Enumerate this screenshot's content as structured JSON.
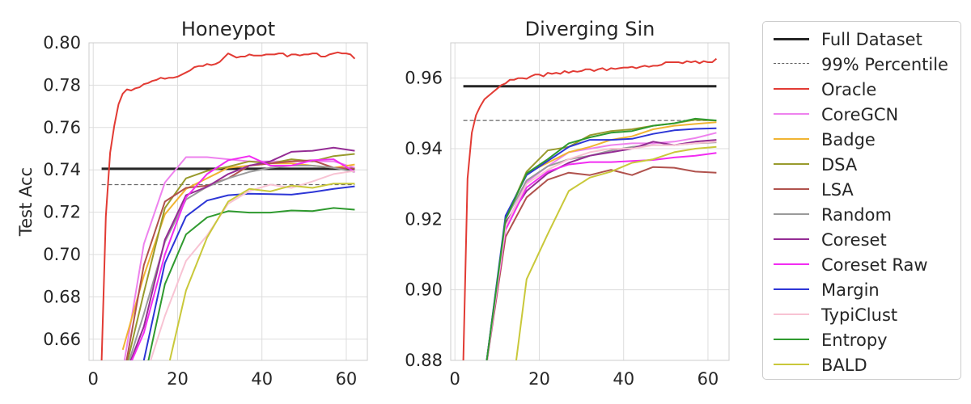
{
  "y_axis_label": "Test Acc",
  "series_styles": [
    {
      "name": "Full Dataset",
      "color": "#262626",
      "width": 3,
      "dash": ""
    },
    {
      "name": "99% Percentile",
      "color": "#666666",
      "width": 1.3,
      "dash": "5,3"
    },
    {
      "name": "Oracle",
      "color": "#e23b34",
      "width": 2,
      "dash": ""
    },
    {
      "name": "CoreGCN",
      "color": "#ee82ee",
      "width": 2,
      "dash": ""
    },
    {
      "name": "Badge",
      "color": "#f0b433",
      "width": 2,
      "dash": ""
    },
    {
      "name": "DSA",
      "color": "#989a2c",
      "width": 2,
      "dash": ""
    },
    {
      "name": "LSA",
      "color": "#b0524d",
      "width": 2,
      "dash": ""
    },
    {
      "name": "Random",
      "color": "#9a9a9a",
      "width": 2,
      "dash": ""
    },
    {
      "name": "Coreset",
      "color": "#942c94",
      "width": 2,
      "dash": ""
    },
    {
      "name": "Coreset Raw",
      "color": "#f22cf2",
      "width": 2,
      "dash": ""
    },
    {
      "name": "Margin",
      "color": "#2d36d6",
      "width": 2,
      "dash": ""
    },
    {
      "name": "TypiClust",
      "color": "#f8c3d3",
      "width": 2,
      "dash": ""
    },
    {
      "name": "Entropy",
      "color": "#2f9a2f",
      "width": 2,
      "dash": ""
    },
    {
      "name": "BALD",
      "color": "#c9c83a",
      "width": 2,
      "dash": ""
    }
  ],
  "chart_data": [
    {
      "type": "line",
      "title": "Honeypot",
      "xlabel": "",
      "ylabel": "Test Acc",
      "xlim": [
        -1,
        65
      ],
      "ylim": [
        0.65,
        0.8
      ],
      "xticks": [
        0,
        20,
        40,
        60
      ],
      "yticks": [
        0.66,
        0.68,
        0.7,
        0.72,
        0.74,
        0.76,
        0.78,
        0.8
      ],
      "ytick_labels": [
        "0.66",
        "0.68",
        "0.70",
        "0.72",
        "0.74",
        "0.76",
        "0.78",
        "0.80"
      ],
      "grid": true,
      "series": [
        {
          "name": "Full Dataset",
          "x": [
            2,
            62
          ],
          "values": [
            0.7405,
            0.7405
          ]
        },
        {
          "name": "99% Percentile",
          "x": [
            2,
            62
          ],
          "values": [
            0.733,
            0.733
          ]
        },
        {
          "name": "Oracle",
          "x": [
            2,
            3,
            4,
            5,
            6,
            7,
            8,
            9,
            10,
            11,
            12,
            13,
            14,
            15,
            16,
            17,
            18,
            19,
            20,
            21,
            22,
            23,
            24,
            25,
            26,
            27,
            28,
            29,
            30,
            31,
            32,
            33,
            34,
            35,
            36,
            37,
            38,
            39,
            40,
            41,
            42,
            43,
            44,
            45,
            46,
            47,
            48,
            49,
            50,
            51,
            52,
            53,
            54,
            55,
            56,
            57,
            58,
            59,
            60,
            61,
            62
          ],
          "values": [
            0.65,
            0.718,
            0.748,
            0.761,
            0.771,
            0.776,
            0.778,
            0.7775,
            0.7785,
            0.779,
            0.7805,
            0.781,
            0.782,
            0.7825,
            0.7835,
            0.783,
            0.7835,
            0.7835,
            0.784,
            0.785,
            0.786,
            0.787,
            0.7885,
            0.789,
            0.789,
            0.79,
            0.7895,
            0.79,
            0.791,
            0.793,
            0.795,
            0.794,
            0.793,
            0.7935,
            0.7935,
            0.7945,
            0.794,
            0.794,
            0.794,
            0.7945,
            0.7945,
            0.7945,
            0.795,
            0.795,
            0.7935,
            0.7945,
            0.7945,
            0.794,
            0.7945,
            0.7945,
            0.795,
            0.795,
            0.7935,
            0.7935,
            0.7945,
            0.795,
            0.7955,
            0.795,
            0.795,
            0.7945,
            0.7925
          ]
        },
        {
          "name": "CoreGCN",
          "x": [
            7,
            12,
            17,
            22,
            27,
            32,
            37,
            42,
            47,
            52,
            57,
            62
          ],
          "values": [
            0.645,
            0.705,
            0.734,
            0.746,
            0.746,
            0.745,
            0.744,
            0.744,
            0.744,
            0.744,
            0.744,
            0.741
          ]
        },
        {
          "name": "Badge",
          "x": [
            7,
            12,
            17,
            22,
            27,
            32,
            37,
            42,
            47,
            52,
            57,
            62
          ],
          "values": [
            0.655,
            0.69,
            0.719,
            0.731,
            0.736,
            0.741,
            0.742,
            0.743,
            0.743,
            0.742,
            0.741,
            0.7425
          ]
        },
        {
          "name": "DSA",
          "x": [
            7,
            12,
            17,
            22,
            27,
            32,
            37,
            42,
            47,
            52,
            57,
            62
          ],
          "values": [
            0.64,
            0.682,
            0.722,
            0.736,
            0.7395,
            0.7415,
            0.744,
            0.743,
            0.745,
            0.744,
            0.7465,
            0.7475
          ]
        },
        {
          "name": "LSA",
          "x": [
            7,
            12,
            17,
            22,
            27,
            32,
            37,
            42,
            47,
            52,
            57,
            62
          ],
          "values": [
            0.64,
            0.695,
            0.725,
            0.7315,
            0.7325,
            0.736,
            0.742,
            0.743,
            0.744,
            0.7445,
            0.741,
            0.7405
          ]
        },
        {
          "name": "Random",
          "x": [
            7,
            12,
            17,
            22,
            27,
            32,
            37,
            42,
            47,
            52,
            57,
            62
          ],
          "values": [
            0.64,
            0.672,
            0.706,
            0.726,
            0.732,
            0.736,
            0.739,
            0.741,
            0.742,
            0.742,
            0.741,
            0.739
          ]
        },
        {
          "name": "Coreset",
          "x": [
            7,
            12,
            17,
            22,
            27,
            32,
            37,
            42,
            47,
            52,
            57,
            62
          ],
          "values": [
            0.64,
            0.666,
            0.707,
            0.728,
            0.732,
            0.738,
            0.742,
            0.744,
            0.7485,
            0.749,
            0.7505,
            0.749
          ]
        },
        {
          "name": "Coreset Raw",
          "x": [
            7,
            12,
            17,
            22,
            27,
            32,
            37,
            42,
            47,
            52,
            57,
            62
          ],
          "values": [
            0.64,
            0.663,
            0.7,
            0.727,
            0.738,
            0.7445,
            0.7465,
            0.742,
            0.742,
            0.7445,
            0.745,
            0.739
          ]
        },
        {
          "name": "Margin",
          "x": [
            7,
            12,
            17,
            22,
            27,
            32,
            37,
            42,
            47,
            52,
            57,
            62
          ],
          "values": [
            0.63,
            0.65,
            0.696,
            0.718,
            0.7255,
            0.728,
            0.7287,
            0.7285,
            0.7283,
            0.7295,
            0.731,
            0.7322
          ]
        },
        {
          "name": "TypiClust",
          "x": [
            12,
            17,
            22,
            27,
            32,
            37,
            42,
            47,
            52,
            57,
            62
          ],
          "values": [
            0.64,
            0.671,
            0.697,
            0.709,
            0.724,
            0.73,
            0.733,
            0.7315,
            0.7345,
            0.738,
            0.7395
          ]
        },
        {
          "name": "Entropy",
          "x": [
            12,
            17,
            22,
            27,
            32,
            37,
            42,
            47,
            52,
            57,
            62
          ],
          "values": [
            0.64,
            0.686,
            0.7095,
            0.7175,
            0.7205,
            0.7198,
            0.7198,
            0.7208,
            0.7205,
            0.722,
            0.7212
          ]
        },
        {
          "name": "BALD",
          "x": [
            17,
            22,
            27,
            32,
            37,
            42,
            47,
            52,
            57,
            62
          ],
          "values": [
            0.64,
            0.683,
            0.708,
            0.725,
            0.731,
            0.7298,
            0.7325,
            0.7315,
            0.7335,
            0.7335
          ]
        }
      ]
    },
    {
      "type": "line",
      "title": "Diverging Sin",
      "xlabel": "",
      "ylabel": "",
      "xlim": [
        -1,
        65
      ],
      "ylim": [
        0.88,
        0.97
      ],
      "xticks": [
        0,
        20,
        40,
        60
      ],
      "yticks": [
        0.88,
        0.9,
        0.92,
        0.94,
        0.96
      ],
      "ytick_labels": [
        "0.88",
        "0.90",
        "0.92",
        "0.94",
        "0.96"
      ],
      "grid": true,
      "series": [
        {
          "name": "Full Dataset",
          "x": [
            2,
            62
          ],
          "values": [
            0.9577,
            0.9577
          ]
        },
        {
          "name": "99% Percentile",
          "x": [
            2,
            62
          ],
          "values": [
            0.948,
            0.948
          ]
        },
        {
          "name": "Oracle",
          "x": [
            2,
            3,
            4,
            5,
            6,
            7,
            8,
            9,
            10,
            11,
            12,
            13,
            14,
            15,
            16,
            17,
            18,
            19,
            20,
            21,
            22,
            23,
            24,
            25,
            26,
            27,
            28,
            29,
            30,
            31,
            32,
            33,
            34,
            35,
            36,
            37,
            38,
            39,
            40,
            41,
            42,
            43,
            44,
            45,
            46,
            47,
            48,
            49,
            50,
            51,
            52,
            53,
            54,
            55,
            56,
            57,
            58,
            59,
            60,
            61,
            62
          ],
          "values": [
            0.88,
            0.9315,
            0.9445,
            0.9495,
            0.952,
            0.954,
            0.955,
            0.956,
            0.957,
            0.958,
            0.9585,
            0.9595,
            0.9595,
            0.96,
            0.96,
            0.9598,
            0.9605,
            0.961,
            0.961,
            0.9605,
            0.9615,
            0.9612,
            0.9615,
            0.9612,
            0.962,
            0.9615,
            0.962,
            0.9618,
            0.962,
            0.9625,
            0.9625,
            0.962,
            0.9625,
            0.9628,
            0.9622,
            0.9628,
            0.9626,
            0.9628,
            0.963,
            0.963,
            0.9632,
            0.9628,
            0.9632,
            0.9635,
            0.9632,
            0.9635,
            0.9635,
            0.9638,
            0.9645,
            0.9645,
            0.9645,
            0.9645,
            0.9642,
            0.9648,
            0.9645,
            0.9648,
            0.9642,
            0.9648,
            0.9645,
            0.9645,
            0.9655
          ]
        },
        {
          "name": "CoreGCN",
          "x": [
            7,
            12,
            17,
            22,
            27,
            32,
            37,
            42,
            47,
            52,
            57,
            62
          ],
          "values": [
            0.875,
            0.918,
            0.9305,
            0.935,
            0.939,
            0.94,
            0.941,
            0.9415,
            0.9415,
            0.942,
            0.943,
            0.9445
          ]
        },
        {
          "name": "Badge",
          "x": [
            7,
            12,
            17,
            22,
            27,
            32,
            37,
            42,
            47,
            52,
            57,
            62
          ],
          "values": [
            0.875,
            0.92,
            0.933,
            0.936,
            0.939,
            0.9405,
            0.9425,
            0.9435,
            0.9455,
            0.9465,
            0.947,
            0.9475
          ]
        },
        {
          "name": "DSA",
          "x": [
            7,
            12,
            17,
            22,
            27,
            32,
            37,
            42,
            47,
            52,
            57,
            62
          ],
          "values": [
            0.875,
            0.92,
            0.9335,
            0.9395,
            0.9405,
            0.9438,
            0.945,
            0.9455,
            0.9465,
            0.9472,
            0.9482,
            0.948
          ]
        },
        {
          "name": "LSA",
          "x": [
            7,
            12,
            17,
            22,
            27,
            32,
            37,
            42,
            47,
            52,
            57,
            62
          ],
          "values": [
            0.875,
            0.915,
            0.9262,
            0.9312,
            0.9332,
            0.9325,
            0.934,
            0.9325,
            0.9348,
            0.9346,
            0.9335,
            0.9332
          ]
        },
        {
          "name": "Random",
          "x": [
            7,
            12,
            17,
            22,
            27,
            32,
            37,
            42,
            47,
            52,
            57,
            62
          ],
          "values": [
            0.875,
            0.92,
            0.931,
            0.935,
            0.937,
            0.938,
            0.9395,
            0.9405,
            0.941,
            0.941,
            0.9415,
            0.9418
          ]
        },
        {
          "name": "Coreset",
          "x": [
            7,
            12,
            17,
            22,
            27,
            32,
            37,
            42,
            47,
            52,
            57,
            62
          ],
          "values": [
            0.875,
            0.919,
            0.928,
            0.933,
            0.936,
            0.938,
            0.939,
            0.94,
            0.942,
            0.941,
            0.942,
            0.9425
          ]
        },
        {
          "name": "Coreset Raw",
          "x": [
            7,
            12,
            17,
            22,
            27,
            32,
            37,
            42,
            47,
            52,
            57,
            62
          ],
          "values": [
            0.875,
            0.917,
            0.929,
            0.9335,
            0.9355,
            0.9362,
            0.9362,
            0.9365,
            0.9368,
            0.9375,
            0.938,
            0.9388
          ]
        },
        {
          "name": "Margin",
          "x": [
            7,
            12,
            17,
            22,
            27,
            32,
            37,
            42,
            47,
            52,
            57,
            62
          ],
          "values": [
            0.875,
            0.921,
            0.9325,
            0.9365,
            0.9405,
            0.9425,
            0.9425,
            0.9428,
            0.9442,
            0.9452,
            0.9456,
            0.9458
          ]
        },
        {
          "name": "TypiClust",
          "x": [
            7,
            12,
            17,
            22,
            27,
            32,
            37,
            42,
            47,
            52,
            57,
            62
          ],
          "values": [
            0.875,
            0.918,
            0.93,
            0.934,
            0.937,
            0.939,
            0.94,
            0.94,
            0.941,
            0.941,
            0.9415,
            0.942
          ]
        },
        {
          "name": "Entropy",
          "x": [
            7,
            12,
            17,
            22,
            27,
            32,
            37,
            42,
            47,
            52,
            57,
            62
          ],
          "values": [
            0.875,
            0.92,
            0.933,
            0.937,
            0.9415,
            0.9432,
            0.9445,
            0.945,
            0.9465,
            0.9472,
            0.9485,
            0.948
          ]
        },
        {
          "name": "BALD",
          "x": [
            14,
            17,
            22,
            27,
            32,
            37,
            42,
            47,
            52,
            57,
            62
          ],
          "values": [
            0.875,
            0.903,
            0.9158,
            0.928,
            0.9318,
            0.9335,
            0.936,
            0.937,
            0.939,
            0.94,
            0.9405
          ]
        }
      ]
    }
  ]
}
